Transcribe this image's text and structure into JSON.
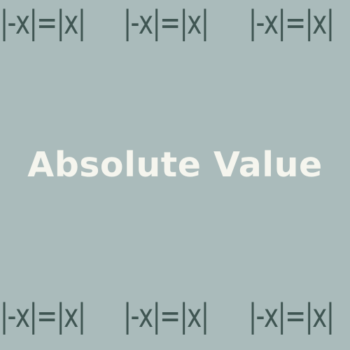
{
  "identity_text": "|-x|=|x|",
  "title": "Absolute Value",
  "colors": {
    "background": "#aabbbb",
    "formula": "#3f5552",
    "title": "#f5f5ee"
  }
}
